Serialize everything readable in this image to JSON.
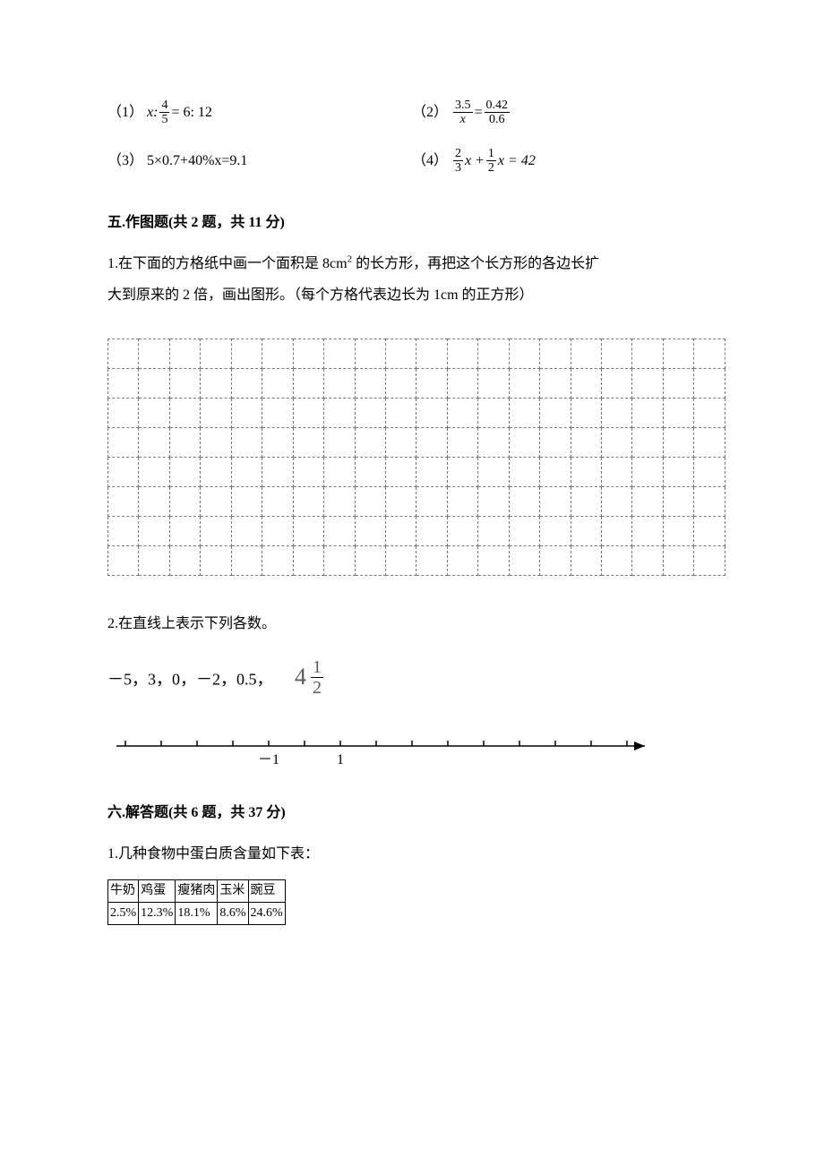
{
  "equations": {
    "row1": {
      "left_label": "（1）",
      "left_prefix": "x:",
      "left_frac_num": "4",
      "left_frac_den": "5",
      "left_suffix": " = 6: 12",
      "right_label": "（2）",
      "right_frac1_num": "3.5",
      "right_frac1_den": "x",
      "right_eq": " = ",
      "right_frac2_num": "0.42",
      "right_frac2_den": "0.6"
    },
    "row2": {
      "left_label": "（3）",
      "left_text": "5×0.7+40%x=9.1",
      "right_label": "（4）",
      "right_frac1_num": "2",
      "right_frac1_den": "3",
      "right_mid1": "x + ",
      "right_frac2_num": "1",
      "right_frac2_den": "2",
      "right_mid2": "x = 42"
    }
  },
  "section5": {
    "title": "五.作图题(共 2 题，共 11 分)",
    "q1_line1": "1.在下面的方格纸中画一个面积是 8cm",
    "q1_sup": "2",
    "q1_line1b": " 的长方形，再把这个长方形的各边长扩",
    "q1_line2": "大到原来的 2 倍，画出图形。（每个方格代表边长为 1cm 的正方形）",
    "grid": {
      "rows": 8,
      "cols": 20,
      "border_color": "#777777"
    },
    "q2_text": "2.在直线上表示下列各数。",
    "numbers_prefix": "－5，3，0，－2，0.5，",
    "mixed_whole": "4",
    "mixed_num": "1",
    "mixed_den": "2",
    "numberline": {
      "tick_count": 15,
      "label_neg1_index": 4,
      "label_pos1_index": 6,
      "label_neg1": "－1",
      "label_pos1": "1",
      "stroke": "#000000"
    }
  },
  "section6": {
    "title": "六.解答题(共 6 题，共 37 分)",
    "q1_text": "1.几种食物中蛋白质含量如下表：",
    "table": {
      "headers": [
        "牛奶",
        "鸡蛋",
        "瘦猪肉",
        "玉米",
        "豌豆"
      ],
      "values": [
        "2.5%",
        "12.3%",
        "18.1%",
        "8.6%",
        "24.6%"
      ]
    }
  }
}
